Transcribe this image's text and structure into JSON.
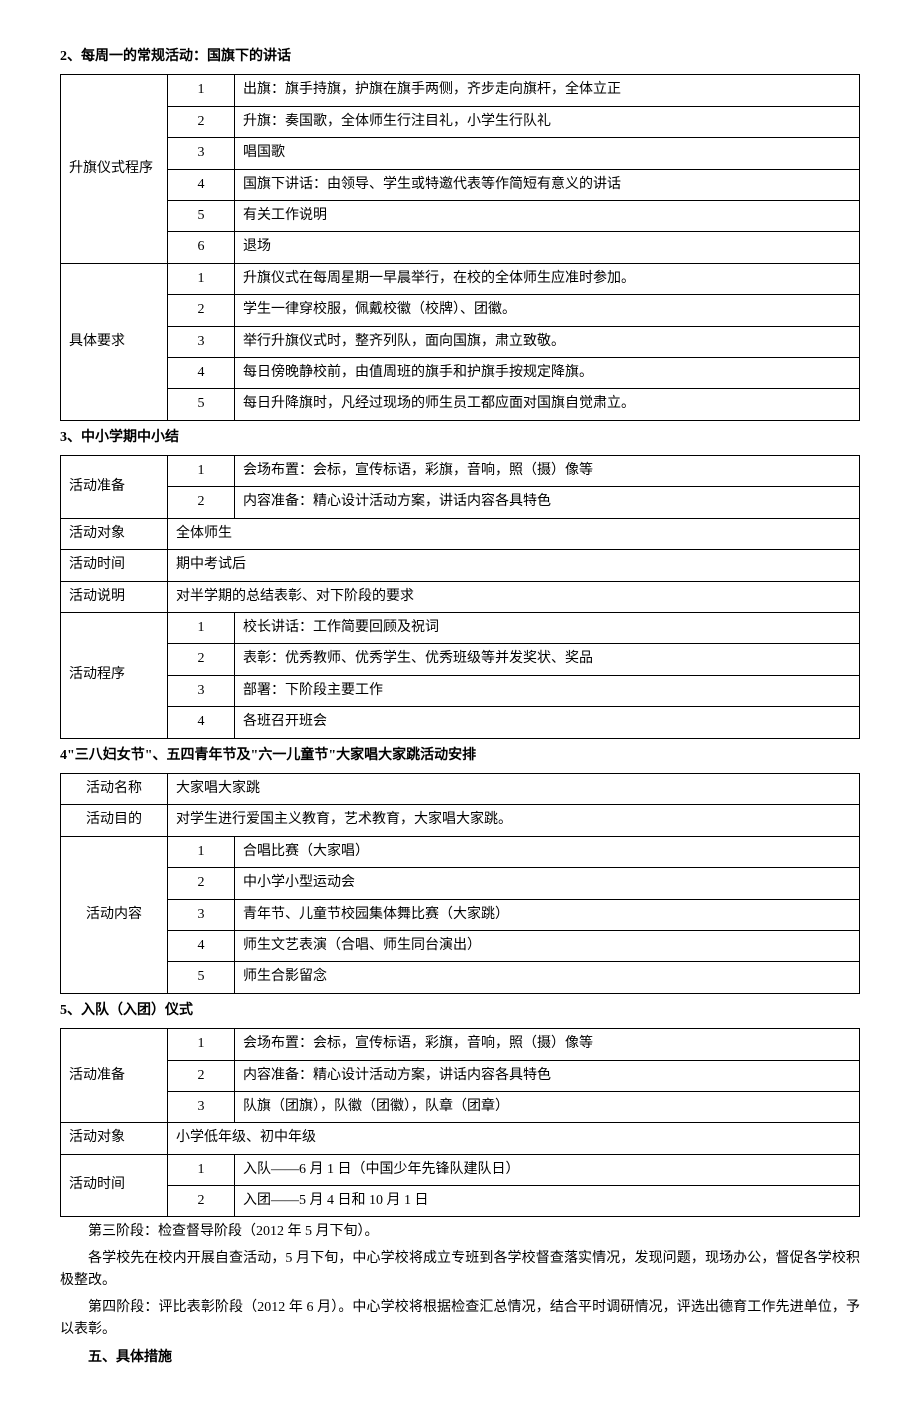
{
  "h2": "2、每周一的常规活动：国旗下的讲话",
  "t2": {
    "g1label": "升旗仪式程序",
    "g1": [
      {
        "n": "1",
        "t": "出旗：旗手持旗，护旗在旗手两侧，齐步走向旗杆，全体立正"
      },
      {
        "n": "2",
        "t": "升旗：奏国歌，全体师生行注目礼，小学生行队礼"
      },
      {
        "n": "3",
        "t": "唱国歌"
      },
      {
        "n": "4",
        "t": "国旗下讲话：由领导、学生或特邀代表等作简短有意义的讲话"
      },
      {
        "n": "5",
        "t": "有关工作说明"
      },
      {
        "n": "6",
        "t": "退场"
      }
    ],
    "g2label": "具体要求",
    "g2": [
      {
        "n": "1",
        "t": "升旗仪式在每周星期一早晨举行，在校的全体师生应准时参加。"
      },
      {
        "n": "2",
        "t": "学生一律穿校服，佩戴校徽（校牌）、团徽。"
      },
      {
        "n": "3",
        "t": "举行升旗仪式时，整齐列队，面向国旗，肃立致敬。"
      },
      {
        "n": "4",
        "t": "每日傍晚静校前，由值周班的旗手和护旗手按规定降旗。"
      },
      {
        "n": "5",
        "t": "每日升降旗时，凡经过现场的师生员工都应面对国旗自觉肃立。"
      }
    ]
  },
  "h3": "3、中小学期中小结",
  "t3": {
    "prepLabel": "活动准备",
    "prep": [
      {
        "n": "1",
        "t": "会场布置：会标，宣传标语，彩旗，音响，照（摄）像等"
      },
      {
        "n": "2",
        "t": "内容准备：精心设计活动方案，讲话内容各具特色"
      }
    ],
    "targetLabel": "活动对象",
    "targetVal": "全体师生",
    "timeLabel": "活动时间",
    "timeVal": "期中考试后",
    "descLabel": "活动说明",
    "descVal": "对半学期的总结表彰、对下阶段的要求",
    "procLabel": "活动程序",
    "proc": [
      {
        "n": "1",
        "t": "校长讲话：工作简要回顾及祝词"
      },
      {
        "n": "2",
        "t": "表彰：优秀教师、优秀学生、优秀班级等并发奖状、奖品"
      },
      {
        "n": "3",
        "t": "部署：下阶段主要工作"
      },
      {
        "n": "4",
        "t": "各班召开班会"
      }
    ]
  },
  "h4": "4\"三八妇女节\"、五四青年节及\"六一儿童节\"大家唱大家跳活动安排",
  "t4": {
    "nameLabel": "活动名称",
    "nameVal": "大家唱大家跳",
    "purposeLabel": "活动目的",
    "purposeVal": "对学生进行爱国主义教育，艺术教育，大家唱大家跳。",
    "contentLabel": "活动内容",
    "content": [
      {
        "n": "1",
        "t": "合唱比赛（大家唱）"
      },
      {
        "n": "2",
        "t": "中小学小型运动会"
      },
      {
        "n": "3",
        "t": "青年节、儿童节校园集体舞比赛（大家跳）"
      },
      {
        "n": "4",
        "t": "师生文艺表演（合唱、师生同台演出）"
      },
      {
        "n": "5",
        "t": "师生合影留念"
      }
    ]
  },
  "h5": "5、入队（入团）仪式",
  "t5": {
    "prepLabel": "活动准备",
    "prep": [
      {
        "n": "1",
        "t": "会场布置：会标，宣传标语，彩旗，音响，照（摄）像等"
      },
      {
        "n": "2",
        "t": "内容准备：精心设计活动方案，讲话内容各具特色"
      },
      {
        "n": "3",
        "t": "队旗（团旗），队徽（团徽），队章（团章）"
      }
    ],
    "targetLabel": "活动对象",
    "targetVal": "小学低年级、初中年级",
    "timeLabel": "活动时间",
    "time": [
      {
        "n": "1",
        "t": "入队——6 月 1 日（中国少年先锋队建队日）"
      },
      {
        "n": "2",
        "t": "入团——5 月 4 日和 10 月 1 日"
      }
    ]
  },
  "p1": "第三阶段：检查督导阶段（2012 年 5 月下旬）。",
  "p2": "各学校先在校内开展自查活动，5 月下旬，中心学校将成立专班到各学校督查落实情况，发现问题，现场办公，督促各学校积极整改。",
  "p3": "第四阶段：评比表彰阶段（2012 年 6 月）。中心学校将根据检查汇总情况，结合平时调研情况，评选出德育工作先进单位，予以表彰。",
  "p4": "五、具体措施"
}
